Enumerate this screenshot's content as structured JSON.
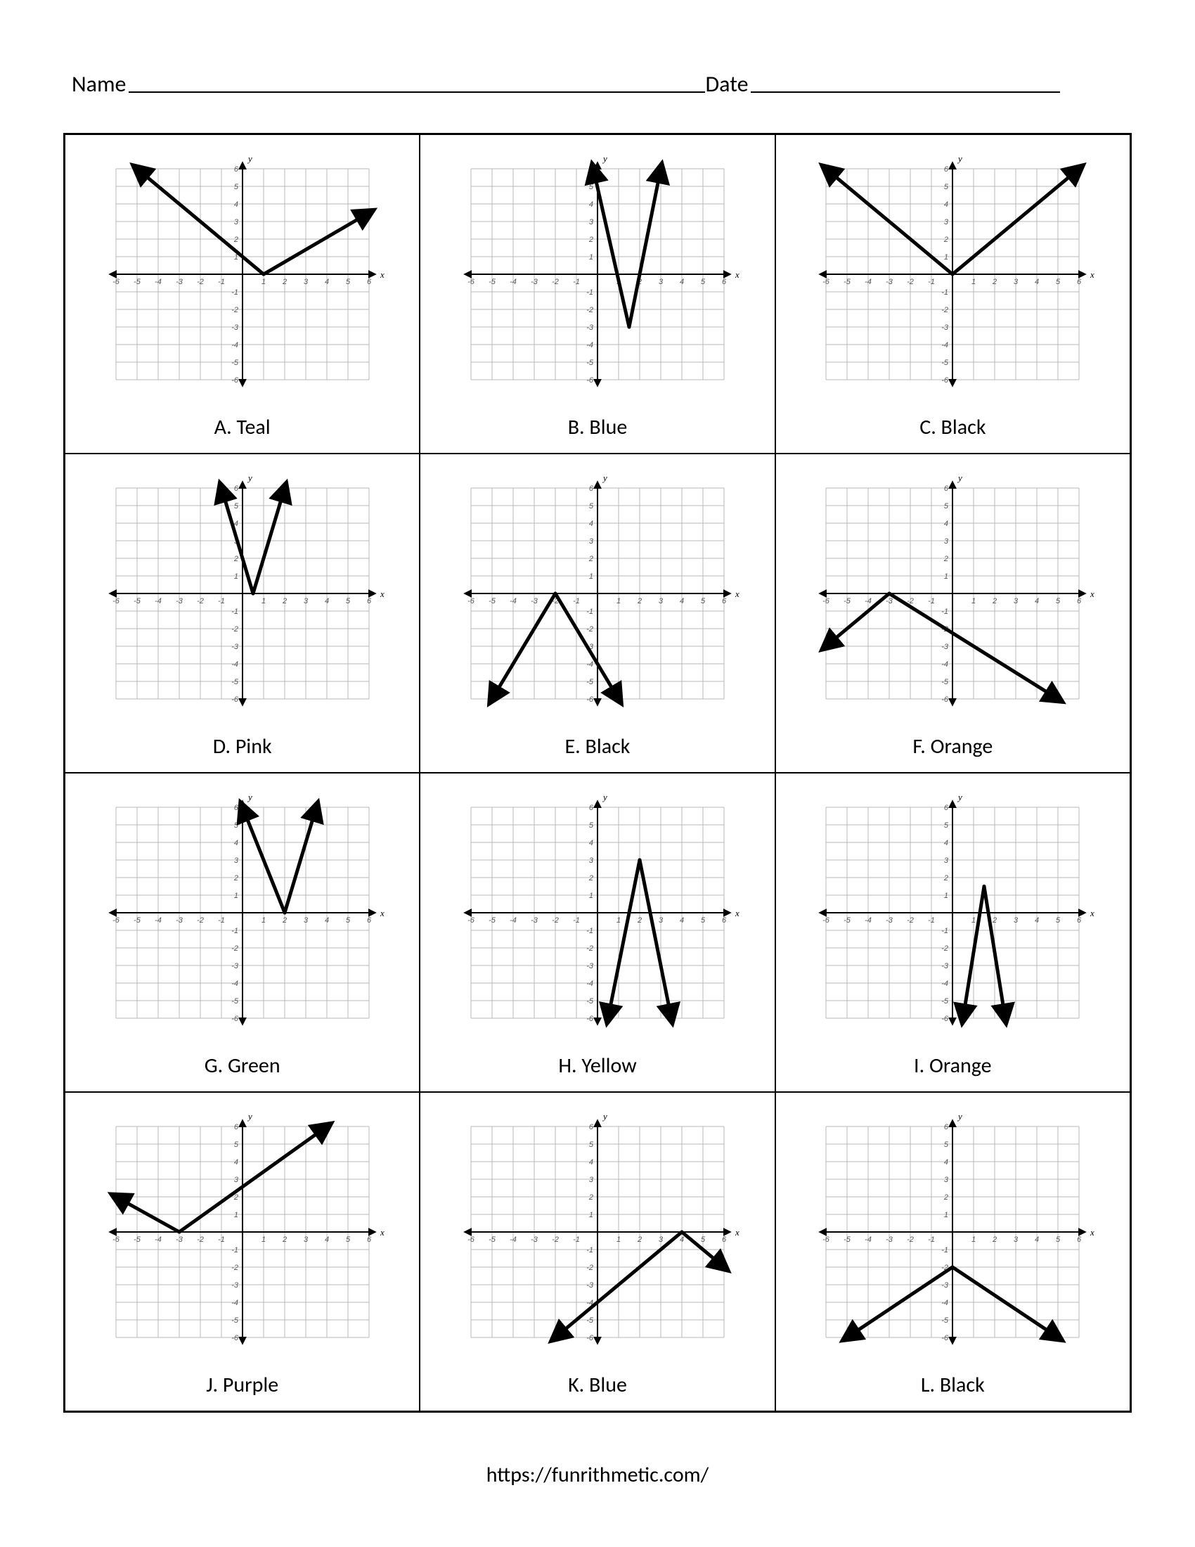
{
  "header": {
    "name_label": "Name",
    "date_label": "Date"
  },
  "footer": {
    "url_text": "https://funrithmetic.com/"
  },
  "axis": {
    "xmin": -6,
    "xmax": 6,
    "ymin": -6,
    "ymax": 6,
    "tick_step": 1,
    "tick_labels_x": [
      "-6",
      "-5",
      "-4",
      "-3",
      "-2",
      "-1",
      "",
      "1",
      "2",
      "3",
      "4",
      "5",
      "6"
    ],
    "tick_labels_y": [
      "-6",
      "-5",
      "-4",
      "-3",
      "-2",
      "-1",
      "",
      "1",
      "2",
      "3",
      "4",
      "5",
      "6"
    ],
    "x_axis_label": "x",
    "y_axis_label": "y",
    "grid_color": "#b8b8b8",
    "axis_color": "#000000",
    "tick_font_size": 11,
    "axis_label_font_size": 13,
    "line_color": "#000000",
    "line_width": 5,
    "background": "#ffffff"
  },
  "graphs": [
    {
      "id": "A",
      "label": "A.  Teal",
      "points": [
        [
          -5,
          6
        ],
        [
          1,
          0
        ],
        [
          6,
          3.5
        ]
      ]
    },
    {
      "id": "B",
      "label": "B.  Blue",
      "points": [
        [
          -0.2,
          6
        ],
        [
          1.5,
          -3
        ],
        [
          3,
          6
        ]
      ]
    },
    {
      "id": "C",
      "label": "C.  Black",
      "points": [
        [
          -6,
          6
        ],
        [
          0,
          0
        ],
        [
          6,
          6
        ]
      ]
    },
    {
      "id": "D",
      "label": "D.  Pink",
      "points": [
        [
          -1,
          6
        ],
        [
          0.5,
          0
        ],
        [
          2,
          6
        ]
      ]
    },
    {
      "id": "E",
      "label": "E.  Black",
      "points": [
        [
          -5,
          -6
        ],
        [
          -2,
          0
        ],
        [
          1,
          -6
        ]
      ]
    },
    {
      "id": "F",
      "label": "F.  Orange",
      "points": [
        [
          -6,
          -3
        ],
        [
          -3,
          0
        ],
        [
          5,
          -6
        ]
      ]
    },
    {
      "id": "G",
      "label": "G.  Green",
      "points": [
        [
          0,
          6
        ],
        [
          2,
          0
        ],
        [
          3.5,
          6
        ]
      ]
    },
    {
      "id": "H",
      "label": "H.  Yellow",
      "points": [
        [
          0.5,
          -6
        ],
        [
          2,
          3
        ],
        [
          3.5,
          -6
        ]
      ]
    },
    {
      "id": "I",
      "label": "I. Orange",
      "points": [
        [
          0.5,
          -6
        ],
        [
          1.5,
          1.5
        ],
        [
          2.5,
          -6
        ]
      ]
    },
    {
      "id": "J",
      "label": "J.  Purple",
      "points": [
        [
          -6,
          2
        ],
        [
          -3,
          0
        ],
        [
          4,
          6
        ]
      ]
    },
    {
      "id": "K",
      "label": "K.  Blue",
      "points": [
        [
          -2,
          -6
        ],
        [
          4,
          0
        ],
        [
          6,
          -2
        ]
      ]
    },
    {
      "id": "L",
      "label": "L.  Black",
      "points": [
        [
          -5,
          -6
        ],
        [
          0,
          -2
        ],
        [
          5,
          -6
        ]
      ]
    }
  ]
}
